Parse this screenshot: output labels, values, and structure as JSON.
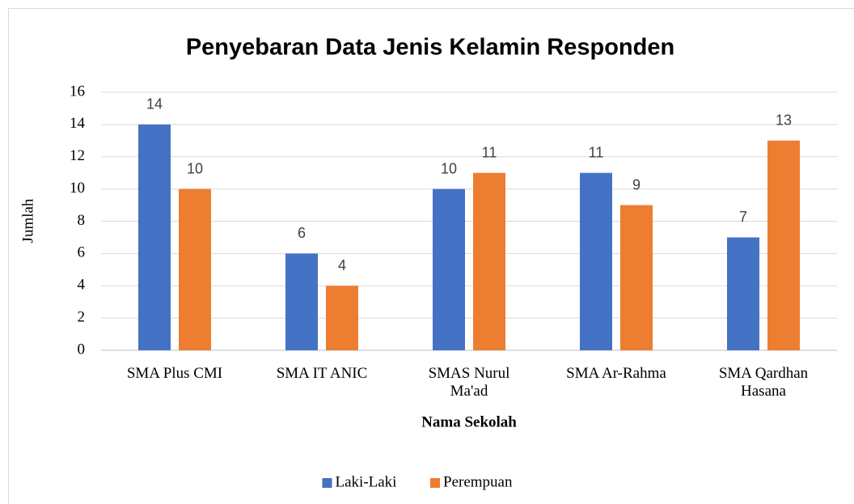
{
  "chart_data": {
    "type": "bar",
    "title": "Penyebaran Data Jenis Kelamin Responden",
    "xlabel": "Nama Sekolah",
    "ylabel": "Jumlah",
    "categories": [
      "SMA Plus CMI",
      "SMA IT ANIC",
      "SMAS Nurul Ma'ad",
      "SMA Ar-Rahma",
      "SMA Qardhan Hasana"
    ],
    "series": [
      {
        "name": "Laki-Laki",
        "color": "#4472c4",
        "values": [
          14,
          6,
          10,
          11,
          7
        ]
      },
      {
        "name": "Perempuan",
        "color": "#ed7d31",
        "values": [
          10,
          4,
          11,
          9,
          13
        ]
      }
    ],
    "ylim": [
      0,
      16
    ],
    "yticks": [
      0,
      2,
      4,
      6,
      8,
      10,
      12,
      14,
      16
    ],
    "grid": true,
    "legend": "bottom"
  }
}
